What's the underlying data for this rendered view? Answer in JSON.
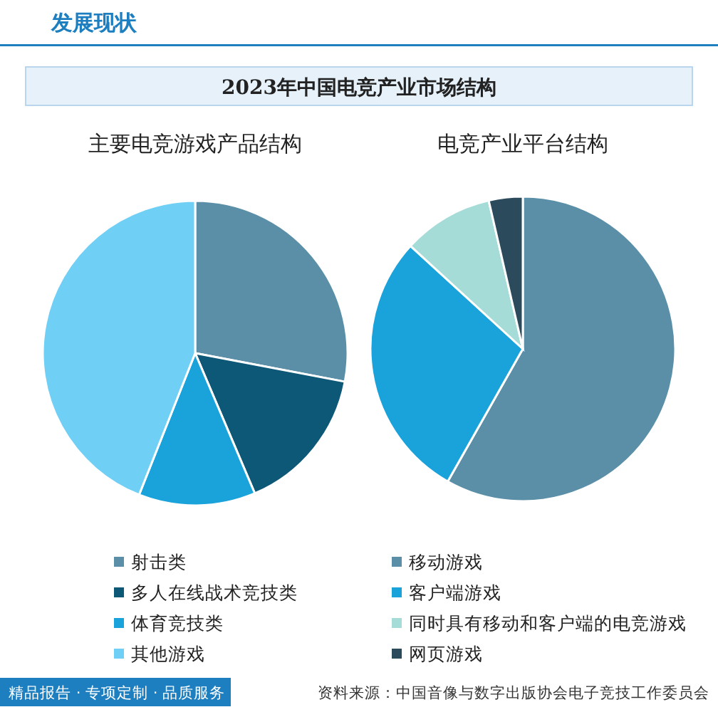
{
  "chart_data": [
    {
      "type": "other",
      "title": "2023年中国电竞产业市场结构",
      "annotations": [
        "发展现状",
        "资料来源：中国音像与数字出版协会电子竞技工作委员会",
        "精品报告 · 专项定制 · 品质服务"
      ]
    },
    {
      "type": "pie",
      "title": "主要电竞游戏产品结构",
      "categories": [
        "射击类",
        "多人在线战术竞技类",
        "体育竞技类",
        "其他游戏"
      ],
      "values": [
        28,
        15.6,
        12.4,
        44
      ],
      "colors": [
        "#5b8fa8",
        "#0e5877",
        "#1aa2da",
        "#6fcff5"
      ],
      "legend": "bottom"
    },
    {
      "type": "pie",
      "title": "电竞产业平台结构",
      "categories": [
        "移动游戏",
        "客户端游戏",
        "同时具有移动和客户端的电竞游戏",
        "网页游戏"
      ],
      "values": [
        58.2,
        28.6,
        9.6,
        3.6
      ],
      "colors": [
        "#5b8fa8",
        "#1aa2da",
        "#a5dcd8",
        "#2b4a5c"
      ],
      "legend": "bottom"
    }
  ]
}
